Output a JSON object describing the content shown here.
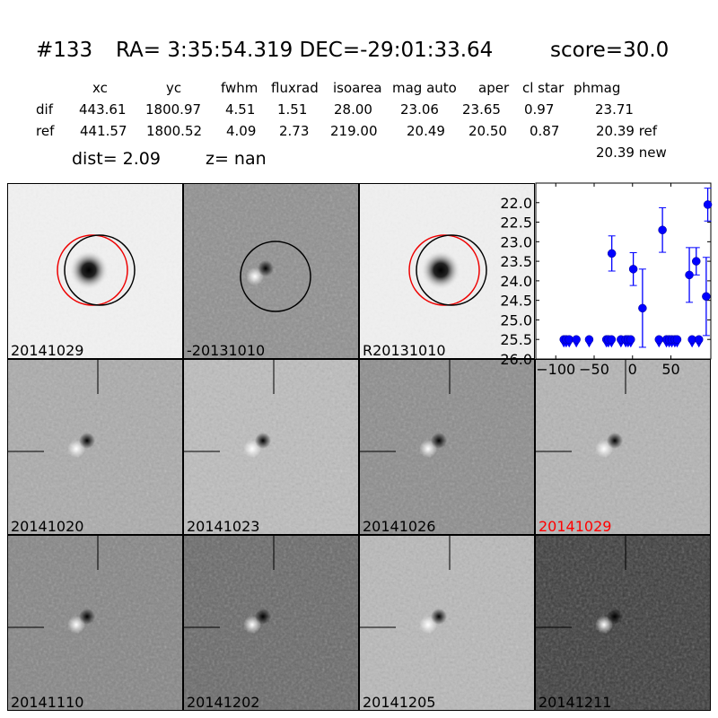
{
  "header": {
    "id": "#133",
    "coords": "RA= 3:35:54.319 DEC=-29:01:33.64",
    "score": "score=30.0"
  },
  "table": {
    "columns": [
      "xc",
      "yc",
      "fwhm",
      "fluxrad",
      "isoarea",
      "mag auto",
      "aper",
      "cl star",
      "phmag"
    ],
    "dif": {
      "label": "dif",
      "values": [
        "443.61",
        "1800.97",
        "4.51",
        "1.51",
        "28.00",
        "23.06",
        "23.65",
        "0.97",
        "23.71"
      ]
    },
    "ref": {
      "label": "ref",
      "values": [
        "441.57",
        "1800.52",
        "4.09",
        "2.73",
        "219.00",
        "20.49",
        "20.50",
        "0.87",
        "20.39 ref"
      ]
    },
    "new_phmag": "20.39 new",
    "dist": "dist=  2.09",
    "z": "z=   nan"
  },
  "panels": [
    {
      "label": "20141029",
      "bg": "#f1f1f1",
      "label_color": "#000000"
    },
    {
      "label": "-20131010",
      "bg": "#8f8f8f",
      "label_color": "#000000"
    },
    {
      "label": "R20131010",
      "bg": "#f0f0f0",
      "label_color": "#000000"
    },
    {
      "label": "20141020",
      "bg": "#ababab",
      "label_color": "#000000"
    },
    {
      "label": "20141023",
      "bg": "#bdbdbd",
      "label_color": "#000000"
    },
    {
      "label": "20141026",
      "bg": "#8c8c8c",
      "label_color": "#000000"
    },
    {
      "label": "20141029",
      "bg": "#b4b4b4",
      "label_color": "#ff0000"
    },
    {
      "label": "20141110",
      "bg": "#858585",
      "label_color": "#000000"
    },
    {
      "label": "20141202",
      "bg": "#686868",
      "label_color": "#000000"
    },
    {
      "label": "20141205",
      "bg": "#b9b9b9",
      "label_color": "#000000"
    },
    {
      "label": "20141211",
      "bg": "#3a3a3a",
      "label_color": "#000000"
    }
  ],
  "chart_data": {
    "type": "scatter",
    "title": "",
    "xlabel": "",
    "ylabel": "",
    "xlim": [
      -126,
      102
    ],
    "ylim": [
      26.0,
      21.5
    ],
    "y_inverted": true,
    "xticks": [
      -100,
      -50,
      0,
      50
    ],
    "yticks": [
      "22.0",
      "22.5",
      "23.0",
      "23.5",
      "24.0",
      "24.5",
      "25.0",
      "25.5",
      "26.0"
    ],
    "color": "#0000ff",
    "detections": [
      {
        "x": -27,
        "y": 23.3,
        "err": 0.45
      },
      {
        "x": 1,
        "y": 23.7,
        "err": 0.42
      },
      {
        "x": 13,
        "y": 24.7,
        "err": 1.0
      },
      {
        "x": 39,
        "y": 22.7,
        "err": 0.57
      },
      {
        "x": 74,
        "y": 23.85,
        "err": 0.7
      },
      {
        "x": 83,
        "y": 23.5,
        "err": 0.35
      },
      {
        "x": 96,
        "y": 24.4,
        "err": 1.0
      },
      {
        "x": 98,
        "y": 22.05,
        "err": 0.42
      }
    ],
    "upper_limits": {
      "y": 25.5,
      "x": [
        -89.5,
        -86.4,
        -82.5,
        -73.2,
        -56.5,
        -34,
        -31.4,
        -27.4,
        -15.1,
        -8.8,
        -5.8,
        -2.3,
        34.5,
        44.2,
        47.7,
        51.2,
        55.1,
        58.1,
        77.6,
        86.5
      ]
    }
  }
}
